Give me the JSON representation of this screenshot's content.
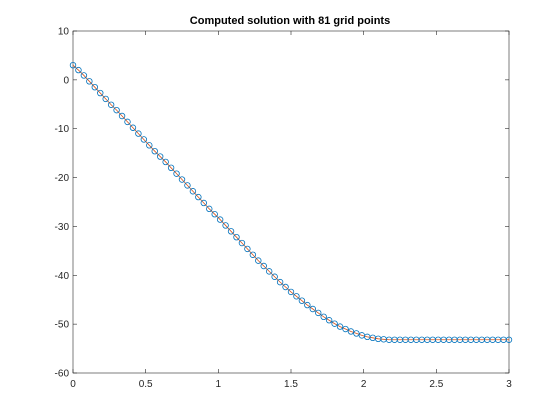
{
  "chart_data": {
    "type": "line",
    "title": "Computed solution with 81 grid points",
    "xlabel": "",
    "ylabel": "",
    "xlim": [
      0,
      3
    ],
    "ylim": [
      -60,
      10
    ],
    "x_ticks": [
      0,
      0.5,
      1,
      1.5,
      2,
      2.5,
      3
    ],
    "x_tick_labels": [
      "0",
      "0.5",
      "1",
      "1.5",
      "2",
      "2.5",
      "3"
    ],
    "y_ticks": [
      -60,
      -50,
      -40,
      -30,
      -20,
      -10,
      0,
      10
    ],
    "y_tick_labels": [
      "-60",
      "-50",
      "-40",
      "-30",
      "-20",
      "-10",
      "0",
      "10"
    ],
    "grid": false,
    "legend": "none",
    "series": [
      {
        "style": "solid-line",
        "color": "#d95319",
        "x_start": 0,
        "x_end": 3,
        "y_start": 3.0,
        "y_end": -53.2,
        "samples": 81,
        "y_values": [
          3.0,
          2.0,
          0.9,
          -0.3,
          -1.5,
          -2.7,
          -3.9,
          -5.1,
          -6.2,
          -7.4,
          -8.6,
          -9.8,
          -11.0,
          -12.2,
          -13.4,
          -14.6,
          -15.7,
          -16.8,
          -18.0,
          -19.2,
          -20.4,
          -21.6,
          -22.8,
          -24.0,
          -25.2,
          -26.4,
          -27.5,
          -28.6,
          -29.8,
          -31.0,
          -32.2,
          -33.4,
          -34.6,
          -35.8,
          -37.0,
          -38.1,
          -39.2,
          -40.3,
          -41.4,
          -42.4,
          -43.4,
          -44.3,
          -45.2,
          -46.1,
          -46.9,
          -47.7,
          -48.5,
          -49.2,
          -49.9,
          -50.5,
          -51.0,
          -51.5,
          -51.9,
          -52.3,
          -52.6,
          -52.8,
          -53.0,
          -53.1,
          -53.2,
          -53.2,
          -53.2,
          -53.2,
          -53.2,
          -53.2,
          -53.2,
          -53.2,
          -53.2,
          -53.2,
          -53.2,
          -53.2,
          -53.2,
          -53.2,
          -53.2,
          -53.2,
          -53.2,
          -53.2,
          -53.2,
          -53.2,
          -53.2,
          -53.2,
          -53.2
        ]
      },
      {
        "style": "circle-markers",
        "color": "#0072bd",
        "samples": 81
      }
    ]
  }
}
